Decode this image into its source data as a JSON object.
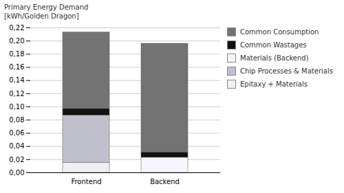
{
  "chart_data": {
    "type": "bar",
    "stacked": true,
    "ylabel": "Primary Energy Demand\n[kWh/Golden Dragon]",
    "categories": [
      "Frontend",
      "Backend"
    ],
    "series": [
      {
        "name": "Epitaxy + Materials",
        "color": "#eeeef5",
        "values": [
          0.015,
          0.0
        ]
      },
      {
        "name": "Chip Processes & Materials",
        "color": "#c0c0cc",
        "values": [
          0.072,
          0.0
        ]
      },
      {
        "name": "Materials (Backend)",
        "color": "#f5f5ff",
        "values": [
          0.0,
          0.023
        ]
      },
      {
        "name": "Common Wastages",
        "color": "#111111",
        "values": [
          0.01,
          0.008
        ]
      },
      {
        "name": "Common Consumption",
        "color": "#737373",
        "values": [
          0.116,
          0.165
        ]
      }
    ],
    "ylim": [
      0,
      0.22
    ],
    "yticks": [
      {
        "value": 0.0,
        "label": "0,00"
      },
      {
        "value": 0.02,
        "label": "0,02"
      },
      {
        "value": 0.04,
        "label": "0,04"
      },
      {
        "value": 0.06,
        "label": "0,06"
      },
      {
        "value": 0.08,
        "label": "0,08"
      },
      {
        "value": 0.1,
        "label": "0,10"
      },
      {
        "value": 0.12,
        "label": "0,12"
      },
      {
        "value": 0.14,
        "label": "0,14"
      },
      {
        "value": 0.16,
        "label": "0,16"
      },
      {
        "value": 0.18,
        "label": "0,18"
      },
      {
        "value": 0.2,
        "label": "0,20"
      },
      {
        "value": 0.22,
        "label": "0,22"
      }
    ],
    "grid": true,
    "legend": "upper right"
  }
}
